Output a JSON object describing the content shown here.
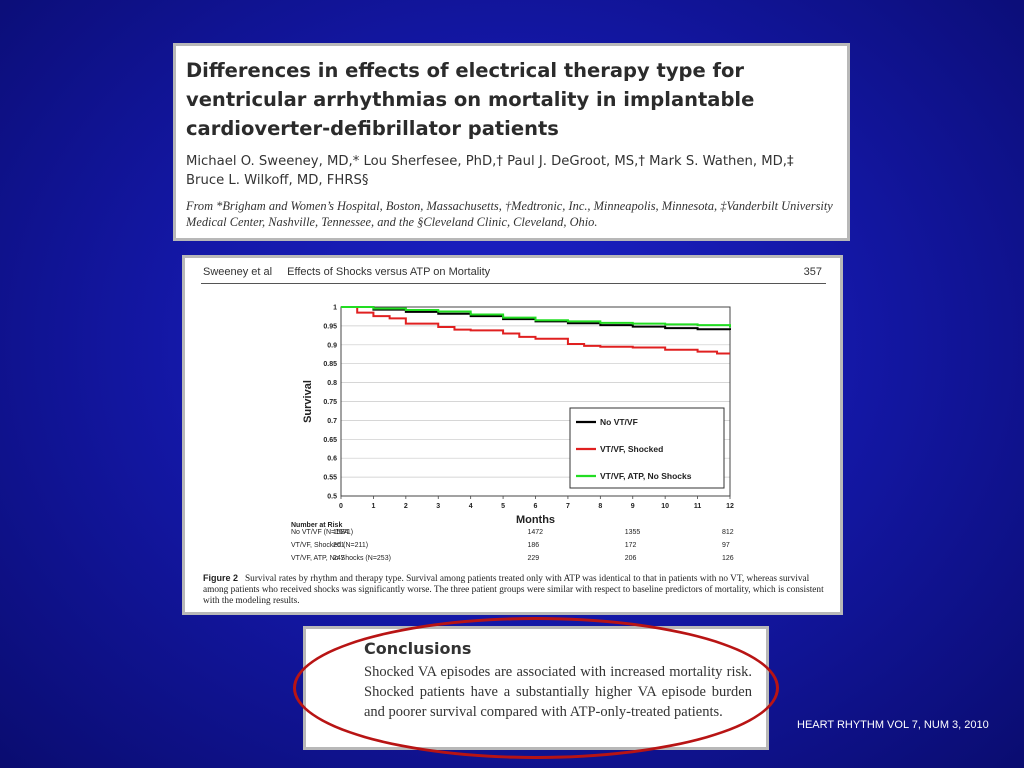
{
  "paper": {
    "title": "Differences in effects of electrical therapy type for ventricular arrhythmias on mortality in implantable cardioverter-defibrillator patients",
    "authors_line1": "Michael O. Sweeney, MD,* Lou Sherfesee, PhD,† Paul J. DeGroot, MS,† Mark S. Wathen, MD,‡",
    "authors_line2": "Bruce L. Wilkoff, MD, FHRS§",
    "affiliation": "From *Brigham and Women’s Hospital, Boston, Massachusetts, †Medtronic, Inc., Minneapolis, Minnesota, ‡Vanderbilt University Medical Center, Nashville, Tennessee, and the §Cleveland Clinic, Cleveland, Ohio."
  },
  "figure": {
    "running_author": "Sweeney et al",
    "running_title": "Effects of Shocks versus ATP on Mortality",
    "page_number": "357",
    "caption_label": "Figure 2",
    "caption_text": "Survival rates by rhythm and therapy type. Survival among patients treated only with ATP was identical to that in patients with no VT, whereas survival among patients who received shocks was significantly worse. The three patient groups were similar with respect to baseline predictors of mortality, which is consistent with the modeling results.",
    "risk_table": {
      "title": "Number at Risk",
      "rows": [
        {
          "label": "No VT/VF (N=1671)",
          "values": [
            "1584",
            "1472",
            "1355",
            "812"
          ]
        },
        {
          "label": "VT/VF, Shocked (N=211)",
          "values": [
            "201",
            "186",
            "172",
            "97"
          ]
        },
        {
          "label": "VT/VF, ATP, No Shocks (N=253)",
          "values": [
            "247",
            "229",
            "206",
            "126"
          ]
        }
      ]
    }
  },
  "chart_data": {
    "type": "line",
    "title": "",
    "xlabel": "Months",
    "ylabel": "Survival",
    "xlim": [
      0,
      12
    ],
    "ylim": [
      0.5,
      1
    ],
    "x_ticks": [
      0,
      1,
      2,
      3,
      4,
      5,
      6,
      7,
      8,
      9,
      10,
      11,
      12
    ],
    "y_ticks": [
      "1",
      "0.95",
      "0.9",
      "0.85",
      "0.8",
      "0.75",
      "0.7",
      "0.65",
      "0.6",
      "0.55",
      "0.5"
    ],
    "grid": true,
    "legend_position": "bottom-right",
    "series": [
      {
        "name": "No VT/VF",
        "color": "#000000",
        "x": [
          0,
          1,
          2,
          3,
          4,
          5,
          6,
          7,
          8,
          9,
          10,
          11,
          12
        ],
        "y": [
          1.0,
          0.993,
          0.987,
          0.982,
          0.976,
          0.968,
          0.962,
          0.957,
          0.952,
          0.948,
          0.944,
          0.941,
          0.939
        ]
      },
      {
        "name": "VT/VF, Shocked",
        "color": "#e02020",
        "x": [
          0,
          0.5,
          1,
          1.5,
          2,
          3,
          3.5,
          4,
          5,
          5.5,
          6,
          7,
          7.5,
          8,
          9,
          10,
          11,
          11.6,
          12
        ],
        "y": [
          1.0,
          0.985,
          0.976,
          0.97,
          0.956,
          0.947,
          0.94,
          0.938,
          0.93,
          0.921,
          0.916,
          0.902,
          0.897,
          0.895,
          0.893,
          0.887,
          0.882,
          0.877,
          0.877
        ]
      },
      {
        "name": "VT/VF, ATP, No Shocks",
        "color": "#22dd22",
        "x": [
          0,
          1,
          2,
          3,
          4,
          5,
          6,
          7,
          8,
          9,
          10,
          11,
          12
        ],
        "y": [
          1.0,
          0.996,
          0.992,
          0.988,
          0.98,
          0.972,
          0.965,
          0.962,
          0.958,
          0.956,
          0.954,
          0.952,
          0.946
        ]
      }
    ],
    "risk_ticks": [
      0,
      6,
      9,
      12
    ]
  },
  "conclusions": {
    "heading": "Conclusions",
    "text": "Shocked VA episodes are associated with increased mortality risk. Shocked patients have a substantially higher VA episode burden and poorer survival compared with ATP-only-treated patients."
  },
  "journal_ref": "HEART RHYTHM  VOL 7, NUM 3, 2010",
  "highlight_color": "#b81414"
}
